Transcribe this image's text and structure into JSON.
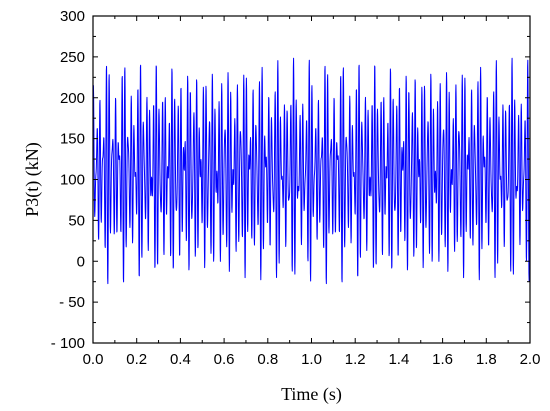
{
  "chart_data": {
    "type": "line",
    "xlabel": "Time  (s)",
    "ylabel": "P3(t) (kN)",
    "xlim": [
      0.0,
      2.0
    ],
    "ylim": [
      -100,
      300
    ],
    "grid": false,
    "x_ticks": [
      0.0,
      0.2,
      0.4,
      0.6,
      0.8,
      1.0,
      1.2,
      1.4,
      1.6,
      1.8,
      2.0
    ],
    "x_tick_labels": [
      "0.0",
      "0.2",
      "0.4",
      "0.6",
      "0.8",
      "1.0",
      "1.2",
      "1.4",
      "1.6",
      "1.8",
      "2.0"
    ],
    "y_ticks": [
      -100,
      -50,
      0,
      50,
      100,
      150,
      200,
      250,
      300
    ],
    "y_tick_labels": [
      "- 100",
      "- 50",
      "0",
      "50",
      "100",
      "150",
      "200",
      "250",
      "300"
    ],
    "series": [
      {
        "color": "#0000ff",
        "signal": {
          "form": "sum of sinusoids",
          "offset": 110,
          "components": [
            {
              "amplitude": 70,
              "frequency": 70,
              "phase": 0.0
            },
            {
              "amplitude": 45,
              "frequency": 97,
              "phase": 1.3
            },
            {
              "amplitude": 25,
              "frequency": 83,
              "phase": 0.7
            }
          ],
          "sample_step": 0.001,
          "approx_max": 265,
          "approx_min": -52
        }
      }
    ]
  }
}
